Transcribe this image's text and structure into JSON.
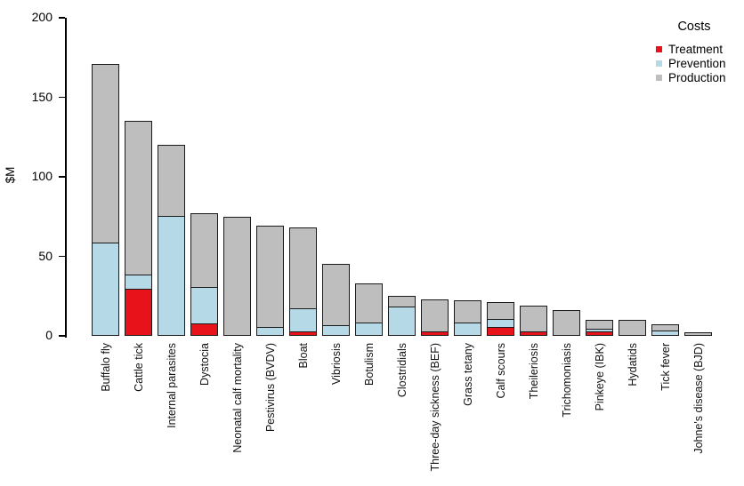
{
  "chart_data": {
    "type": "bar",
    "stacked": true,
    "title": "",
    "ylabel": "$M",
    "xlabel": "",
    "ylim": [
      0,
      200
    ],
    "yticks": [
      0,
      50,
      100,
      150,
      200
    ],
    "grid": false,
    "legend": {
      "title": "Costs",
      "position": "top-right"
    },
    "categories": [
      "Buffalo fly",
      "Cattle tick",
      "Internal parasites",
      "Dystocia",
      "Neonatal calf mortality",
      "Pestivirus (BVDV)",
      "Bloat",
      "Vibriosis",
      "Botulism",
      "Clostridials",
      "Three-day sickness (BEF)",
      "Grass tetany",
      "Calf scours",
      "Theileriosis",
      "Trichomoniasis",
      "Pinkeye (IBK)",
      "Hydatids",
      "Tick fever",
      "Johne's disease (BJD)"
    ],
    "series": [
      {
        "name": "Treatment",
        "color": "#e8121b",
        "values": [
          0,
          29,
          0,
          7,
          0,
          0,
          2,
          0,
          0,
          0,
          2,
          0,
          5,
          2,
          0,
          2,
          0,
          0,
          0
        ]
      },
      {
        "name": "Prevention",
        "color": "#b5d9e6",
        "values": [
          58,
          9,
          75,
          23,
          0,
          5,
          15,
          6,
          8,
          18,
          0,
          8,
          5,
          0,
          0,
          2,
          0,
          3,
          0
        ]
      },
      {
        "name": "Production",
        "color": "#bebebe",
        "values": [
          112,
          96,
          44,
          46,
          74,
          63,
          50,
          38,
          24,
          6,
          20,
          13,
          10,
          16,
          15,
          5,
          9,
          3,
          1
        ]
      }
    ]
  },
  "colors": {
    "bar_border": "#1a1a1a",
    "axis": "#000000",
    "background": "#ffffff"
  }
}
